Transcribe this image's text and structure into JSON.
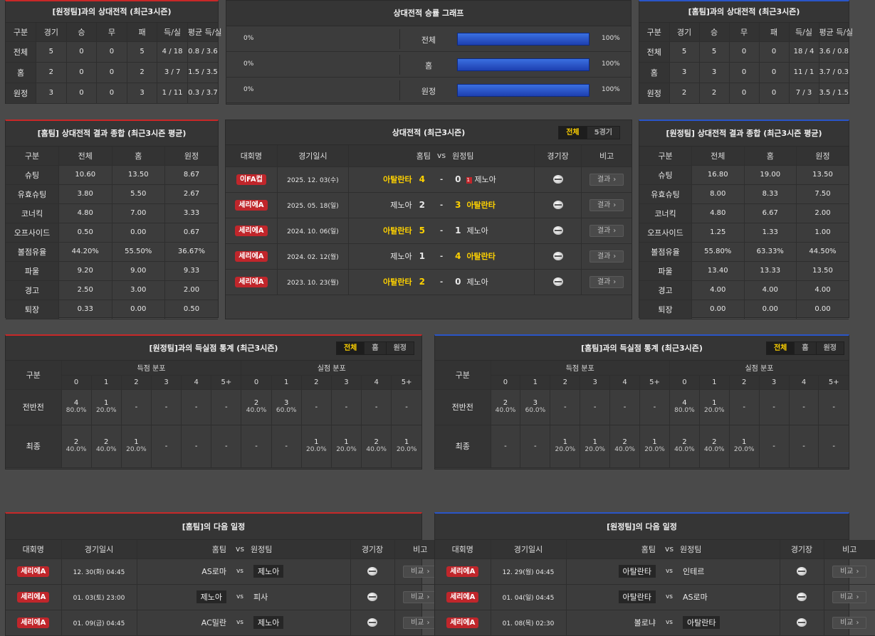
{
  "away_h2h": {
    "title": "[원정팀]과의 상대전적 (최근3시즌)",
    "headers": [
      "구분",
      "경기",
      "승",
      "무",
      "패",
      "득/실",
      "평균 득/실"
    ],
    "rows": [
      [
        "전체",
        "5",
        "0",
        "0",
        "5",
        "4 / 18",
        "0.8 / 3.6"
      ],
      [
        "홈",
        "2",
        "0",
        "0",
        "2",
        "3 / 7",
        "1.5 / 3.5"
      ],
      [
        "원정",
        "3",
        "0",
        "0",
        "3",
        "1 / 11",
        "0.3 / 3.7"
      ]
    ]
  },
  "home_h2h": {
    "title": "[홈팀]과의 상대전적 (최근3시즌)",
    "headers": [
      "구분",
      "경기",
      "승",
      "무",
      "패",
      "득/실",
      "평균 득/실"
    ],
    "rows": [
      [
        "전체",
        "5",
        "5",
        "0",
        "0",
        "18 / 4",
        "3.6 / 0.8"
      ],
      [
        "홈",
        "3",
        "3",
        "0",
        "0",
        "11 / 1",
        "3.7 / 0.3"
      ],
      [
        "원정",
        "2",
        "2",
        "0",
        "0",
        "7 / 3",
        "3.5 / 1.5"
      ]
    ]
  },
  "graph": {
    "title": "상대전적 승률 그래프",
    "rows": [
      {
        "left": "0%",
        "label": "전체",
        "right": "100%",
        "value": 1.0
      },
      {
        "left": "0%",
        "label": "홈",
        "right": "100%",
        "value": 1.0
      },
      {
        "left": "0%",
        "label": "원정",
        "right": "100%",
        "value": 1.0
      }
    ]
  },
  "home_summary": {
    "title": "[홈팀] 상대전적 결과 종합 (최근3시즌 평균)",
    "headers": [
      "구분",
      "전체",
      "홈",
      "원정"
    ],
    "rows": [
      [
        "슈팅",
        "10.60",
        "13.50",
        "8.67"
      ],
      [
        "유효슈팅",
        "3.80",
        "5.50",
        "2.67"
      ],
      [
        "코너킥",
        "4.80",
        "7.00",
        "3.33"
      ],
      [
        "오프사이드",
        "0.50",
        "0.00",
        "0.67"
      ],
      [
        "볼점유율",
        "44.20%",
        "55.50%",
        "36.67%"
      ],
      [
        "파울",
        "9.20",
        "9.00",
        "9.33"
      ],
      [
        "경고",
        "2.50",
        "3.00",
        "2.00"
      ],
      [
        "퇴장",
        "0.33",
        "0.00",
        "0.50"
      ]
    ]
  },
  "away_summary": {
    "title": "[원정팀] 상대전적 결과 종합 (최근3시즌 평균)",
    "headers": [
      "구분",
      "전체",
      "홈",
      "원정"
    ],
    "rows": [
      [
        "슈팅",
        "16.80",
        "19.00",
        "13.50"
      ],
      [
        "유효슈팅",
        "8.00",
        "8.33",
        "7.50"
      ],
      [
        "코너킥",
        "4.80",
        "6.67",
        "2.00"
      ],
      [
        "오프사이드",
        "1.25",
        "1.33",
        "1.00"
      ],
      [
        "볼점유율",
        "55.80%",
        "63.33%",
        "44.50%"
      ],
      [
        "파울",
        "13.40",
        "13.33",
        "13.50"
      ],
      [
        "경고",
        "4.00",
        "4.00",
        "4.00"
      ],
      [
        "퇴장",
        "0.00",
        "0.00",
        "0.00"
      ]
    ]
  },
  "h2h": {
    "title": "상대전적 (최근3시즌)",
    "tabs": [
      "전체",
      "5경기"
    ],
    "headers": {
      "comp": "대회명",
      "date": "경기일시",
      "home": "홈팀",
      "vs": "vs",
      "away": "원정팀",
      "venue": "경기장",
      "note": "비고"
    },
    "matches": [
      {
        "comp": "이FA컵",
        "date": "2025. 12. 03(수)",
        "home": "아탈란타",
        "hs": "4",
        "as": "0",
        "away": "제노아",
        "winner": "home",
        "red": "1",
        "btn": "결과"
      },
      {
        "comp": "세리에A",
        "date": "2025. 05. 18(일)",
        "home": "제노아",
        "hs": "2",
        "as": "3",
        "away": "아탈란타",
        "winner": "away",
        "red": "",
        "btn": "결과"
      },
      {
        "comp": "세리에A",
        "date": "2024. 10. 06(일)",
        "home": "아탈란타",
        "hs": "5",
        "as": "1",
        "away": "제노아",
        "winner": "home",
        "red": "",
        "btn": "결과"
      },
      {
        "comp": "세리에A",
        "date": "2024. 02. 12(월)",
        "home": "제노아",
        "hs": "1",
        "as": "4",
        "away": "아탈란타",
        "winner": "away",
        "red": "",
        "btn": "결과"
      },
      {
        "comp": "세리에A",
        "date": "2023. 10. 23(월)",
        "home": "아탈란타",
        "hs": "2",
        "as": "0",
        "away": "제노아",
        "winner": "home",
        "red": "",
        "btn": "결과"
      }
    ]
  },
  "goal_stats_left": {
    "title": "[원정팀]과의 득실점 통계 (최근3시즌)",
    "tabs": [
      "전체",
      "홈",
      "원정"
    ],
    "col_label": "구분",
    "scored_label": "득점 분포",
    "conceded_label": "실점 분포",
    "buckets": [
      "0",
      "1",
      "2",
      "3",
      "4",
      "5+"
    ],
    "rows": [
      {
        "label": "전반전",
        "scored": [
          [
            "4",
            "80.0%"
          ],
          [
            "1",
            "20.0%"
          ],
          [
            "-",
            ""
          ],
          [
            "-",
            ""
          ],
          [
            "-",
            ""
          ],
          [
            "-",
            ""
          ]
        ],
        "conceded": [
          [
            "2",
            "40.0%"
          ],
          [
            "3",
            "60.0%"
          ],
          [
            "-",
            ""
          ],
          [
            "-",
            ""
          ],
          [
            "-",
            ""
          ],
          [
            "-",
            ""
          ]
        ]
      },
      {
        "label": "최종",
        "scored": [
          [
            "2",
            "40.0%"
          ],
          [
            "2",
            "40.0%"
          ],
          [
            "1",
            "20.0%"
          ],
          [
            "-",
            ""
          ],
          [
            "-",
            ""
          ],
          [
            "-",
            ""
          ]
        ],
        "conceded": [
          [
            "-",
            ""
          ],
          [
            "-",
            ""
          ],
          [
            "1",
            "20.0%"
          ],
          [
            "1",
            "20.0%"
          ],
          [
            "2",
            "40.0%"
          ],
          [
            "1",
            "20.0%"
          ]
        ]
      }
    ]
  },
  "goal_stats_right": {
    "title": "[홈팀]과의 득실점 통계 (최근3시즌)",
    "tabs": [
      "전체",
      "홈",
      "원정"
    ],
    "col_label": "구분",
    "scored_label": "득점 분포",
    "conceded_label": "실점 분포",
    "buckets": [
      "0",
      "1",
      "2",
      "3",
      "4",
      "5+"
    ],
    "rows": [
      {
        "label": "전반전",
        "scored": [
          [
            "2",
            "40.0%"
          ],
          [
            "3",
            "60.0%"
          ],
          [
            "-",
            ""
          ],
          [
            "-",
            ""
          ],
          [
            "-",
            ""
          ],
          [
            "-",
            ""
          ]
        ],
        "conceded": [
          [
            "4",
            "80.0%"
          ],
          [
            "1",
            "20.0%"
          ],
          [
            "-",
            ""
          ],
          [
            "-",
            ""
          ],
          [
            "-",
            ""
          ],
          [
            "-",
            ""
          ]
        ]
      },
      {
        "label": "최종",
        "scored": [
          [
            "-",
            ""
          ],
          [
            "-",
            ""
          ],
          [
            "1",
            "20.0%"
          ],
          [
            "1",
            "20.0%"
          ],
          [
            "2",
            "40.0%"
          ],
          [
            "1",
            "20.0%"
          ]
        ],
        "conceded": [
          [
            "2",
            "40.0%"
          ],
          [
            "2",
            "40.0%"
          ],
          [
            "1",
            "20.0%"
          ],
          [
            "-",
            ""
          ],
          [
            "-",
            ""
          ],
          [
            "-",
            ""
          ]
        ]
      }
    ]
  },
  "next_home": {
    "title": "[홈팀]의 다음 일정",
    "headers": {
      "comp": "대회명",
      "date": "경기일시",
      "home": "홈팀",
      "vs": "vs",
      "away": "원정팀",
      "venue": "경기장",
      "note": "비고"
    },
    "matches": [
      {
        "comp": "세리에A",
        "date": "12. 30(화) 04:45",
        "home": "AS로마",
        "away": "제노아",
        "tag": "away",
        "btn": "비교"
      },
      {
        "comp": "세리에A",
        "date": "01. 03(토) 23:00",
        "home": "제노아",
        "away": "피사",
        "tag": "home",
        "btn": "비교"
      },
      {
        "comp": "세리에A",
        "date": "01. 09(금) 04:45",
        "home": "AC밀란",
        "away": "제노아",
        "tag": "away",
        "btn": "비교"
      }
    ]
  },
  "next_away": {
    "title": "[원정팀]의 다음 일정",
    "headers": {
      "comp": "대회명",
      "date": "경기일시",
      "home": "홈팀",
      "vs": "vs",
      "away": "원정팀",
      "venue": "경기장",
      "note": "비고"
    },
    "matches": [
      {
        "comp": "세리에A",
        "date": "12. 29(월) 04:45",
        "home": "아탈란타",
        "away": "인테르",
        "tag": "home",
        "btn": "비교"
      },
      {
        "comp": "세리에A",
        "date": "01. 04(일) 04:45",
        "home": "아탈란타",
        "away": "AS로마",
        "tag": "home",
        "btn": "비교"
      },
      {
        "comp": "세리에A",
        "date": "01. 08(목) 02:30",
        "home": "볼로냐",
        "away": "아탈란타",
        "tag": "away",
        "btn": "비교"
      }
    ]
  }
}
